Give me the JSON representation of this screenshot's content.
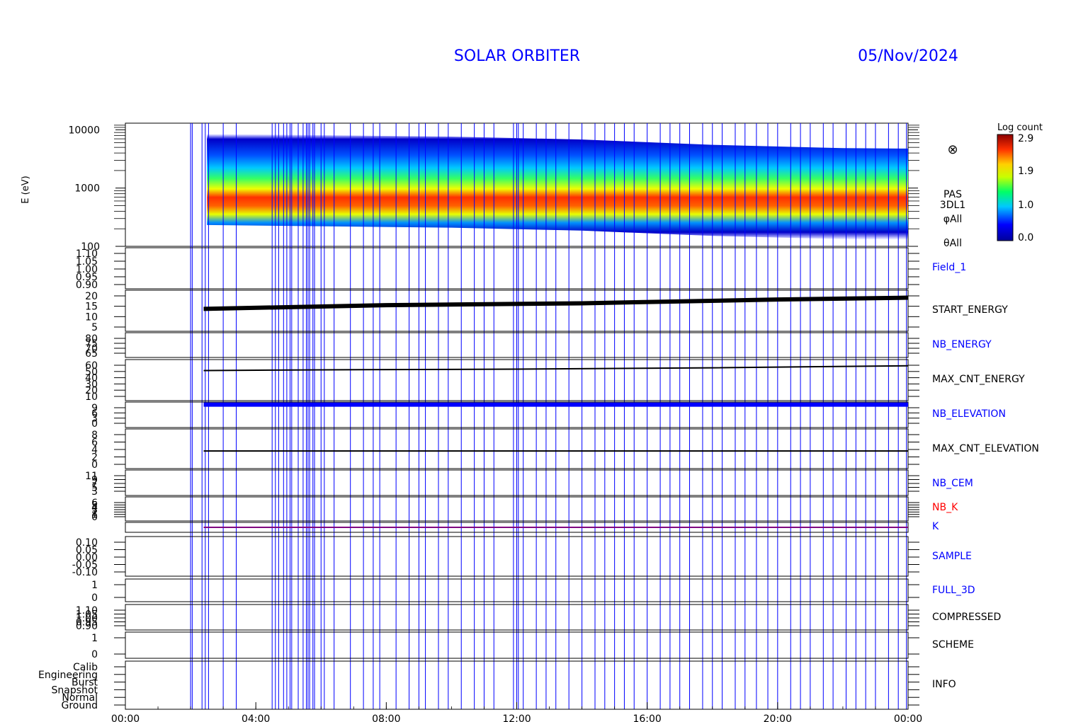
{
  "header": {
    "mission": "SOLAR ORBITER",
    "date": "05/Nov/2024",
    "header_color": "#0000ff"
  },
  "colorbar": {
    "title": "Log count",
    "ticks": [
      "2.9",
      "1.9",
      "1.0",
      "0.0"
    ]
  },
  "x_axis": {
    "ticks": [
      "00:00",
      "04:00",
      "08:00",
      "12:00",
      "16:00",
      "20:00",
      "00:00"
    ]
  },
  "instrument": {
    "symbol": "⊗",
    "labels": [
      "PAS",
      "3DL1",
      "φAll",
      "θAll"
    ]
  },
  "panels": [
    {
      "label": "Field_1",
      "color": "#0000ff",
      "ticks": [
        "1.10",
        "1.05",
        "1.00",
        "0.95",
        "0.90"
      ]
    },
    {
      "label": "START_ENERGY",
      "color": "#000000",
      "ticks": [
        "20",
        "15",
        "10",
        "5"
      ]
    },
    {
      "label": "NB_ENERGY",
      "color": "#0000ff",
      "ticks": [
        "80",
        "75",
        "70",
        "65"
      ]
    },
    {
      "label": "MAX_CNT_ENERGY",
      "color": "#000000",
      "ticks": [
        "60",
        "50",
        "40",
        "30",
        "20",
        "10"
      ]
    },
    {
      "label": "NB_ELEVATION",
      "color": "#0000ff",
      "ticks": [
        "9",
        "6",
        "3",
        "0"
      ]
    },
    {
      "label": "MAX_CNT_ELEVATION",
      "color": "#000000",
      "ticks": [
        "8",
        "6",
        "4",
        "2",
        "0"
      ]
    },
    {
      "label": "NB_CEM",
      "color": "#0000ff",
      "ticks": [
        "11",
        "9",
        "7",
        "5",
        "3"
      ]
    },
    {
      "label": "NB_K",
      "color": "#ff0000",
      "ticks": [
        "6",
        "5",
        "4",
        "3",
        "2",
        "1",
        "0"
      ]
    },
    {
      "label": "K",
      "color": "#0000ff",
      "ticks": []
    },
    {
      "label": "SAMPLE",
      "color": "#0000ff",
      "ticks": [
        "0.10",
        "0.05",
        "0.00",
        "-0.05",
        "-0.10"
      ]
    },
    {
      "label": "FULL_3D",
      "color": "#0000ff",
      "ticks": [
        "1",
        "0"
      ]
    },
    {
      "label": "COMPRESSED",
      "color": "#000000",
      "ticks": [
        "1.10",
        "1.05",
        "1.00",
        "0.95",
        "0.90"
      ]
    },
    {
      "label": "SCHEME",
      "color": "#000000",
      "ticks": [
        "1",
        "0"
      ]
    },
    {
      "label": "INFO",
      "color": "#000000",
      "ticks": [
        "Calib",
        "Engineering",
        "Burst",
        "Snapshot",
        "Normal",
        "Ground"
      ]
    }
  ],
  "chart_data": {
    "type": "heatmap",
    "title": "SOLAR ORBITER 05/Nov/2024",
    "xlabel": "",
    "ylabel": "E (eV)",
    "x_range_hours": [
      0,
      24
    ],
    "y_scale": "log",
    "y_range": [
      100,
      13000
    ],
    "y_ticks": [
      10000,
      1000,
      100
    ],
    "colorbar_title": "Log count",
    "colorbar_range": [
      0.0,
      2.9
    ],
    "data_start_hour": 2.4,
    "peak_energy_ev": [
      {
        "x": 2.5,
        "y": 1000
      },
      {
        "x": 6,
        "y": 950
      },
      {
        "x": 10,
        "y": 900
      },
      {
        "x": 14,
        "y": 800
      },
      {
        "x": 18,
        "y": 650
      },
      {
        "x": 22,
        "y": 570
      },
      {
        "x": 24,
        "y": 560
      }
    ],
    "marker_color": "#0000ff",
    "marker_hours": [
      2.0,
      2.05,
      2.35,
      2.45,
      2.55,
      3.0,
      3.4,
      4.5,
      4.6,
      4.7,
      4.85,
      4.95,
      5.05,
      5.1,
      5.3,
      5.45,
      5.55,
      5.6,
      5.65,
      5.75,
      5.8,
      6.0,
      6.1,
      6.4,
      6.9,
      7.3,
      7.6,
      7.8,
      8.3,
      8.7,
      9.0,
      9.2,
      9.6,
      9.9,
      10.3,
      10.7,
      11.0,
      11.3,
      11.9,
      12.0,
      12.05,
      12.2,
      12.6,
      12.9,
      13.2,
      13.6,
      14.0,
      14.4,
      14.7,
      15.0,
      15.3,
      15.6,
      16.0,
      16.4,
      16.7,
      17.0,
      17.3,
      17.7,
      18.0,
      18.3,
      18.7,
      19.0,
      19.35,
      19.7,
      20.0,
      20.4,
      20.7,
      21.0,
      21.4,
      21.7,
      22.1,
      22.4,
      22.7,
      23.0,
      23.4,
      23.7,
      23.95
    ],
    "series": [
      {
        "name": "START_ENERGY",
        "start_hour": 2.4,
        "x": [
          2.4,
          8,
          14,
          20,
          24
        ],
        "y": [
          12,
          14,
          15,
          17,
          18
        ]
      },
      {
        "name": "MAX_CNT_ENERGY",
        "start_hour": 2.4,
        "x": [
          2.4,
          6,
          12,
          18,
          24
        ],
        "y": [
          49,
          50,
          51,
          53,
          56
        ]
      },
      {
        "name": "NB_ELEVATION",
        "start_hour": 2.4,
        "x": [
          2.4,
          24
        ],
        "y": [
          9,
          9
        ]
      },
      {
        "name": "MAX_CNT_ELEVATION",
        "start_hour": 2.4,
        "x": [
          2.4,
          24
        ],
        "y": [
          4,
          4
        ]
      },
      {
        "name": "K",
        "start_hour": 2.4,
        "x": [
          2.4,
          24
        ],
        "y": [
          1,
          1
        ]
      }
    ]
  }
}
